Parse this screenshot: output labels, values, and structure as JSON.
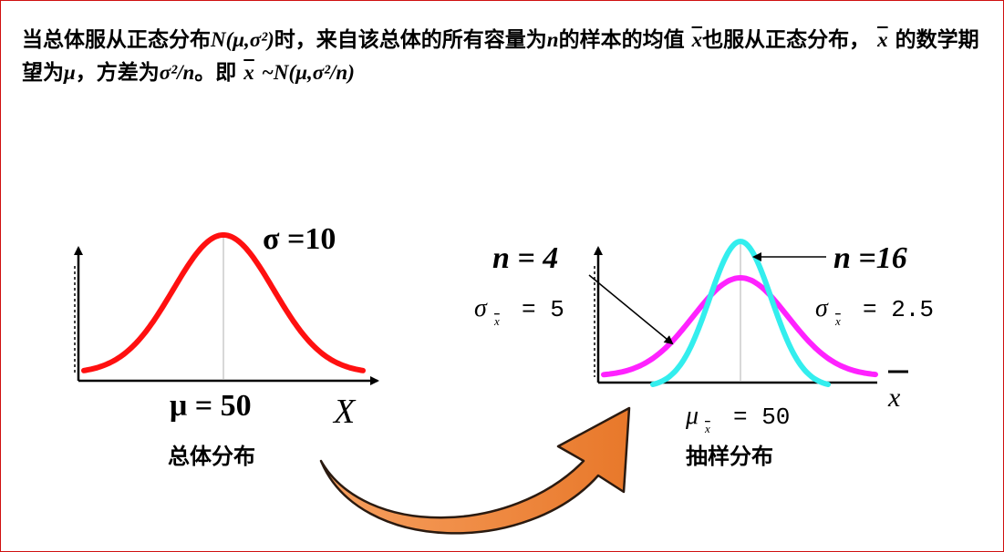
{
  "intro": {
    "p1": "当总体服从正态分布",
    "m1": "N(μ,σ²)",
    "p2": "时，来自该总体的所有容量为",
    "m2": "n",
    "p3": "的样本的均值",
    "m3": "x",
    "p4": "也服从正态分布，",
    "m4": "x",
    "p5": "的数学期望为",
    "m5": "μ",
    "p6": "，方差为",
    "m6": "σ²/n",
    "p7": "。即",
    "m7": "x",
    "m8": "~N(μ,σ²/n)"
  },
  "left": {
    "sigma_label": "σ =10",
    "mu_label": "μ = 50",
    "axis_label": "X",
    "caption": "总体分布"
  },
  "right": {
    "n4_label": "n = 4",
    "n16_label": "n =16",
    "sigma4_sym": "σ",
    "sigma4_sub": "x",
    "sigma4_val": "= 5",
    "sigma16_sym": "σ",
    "sigma16_sub": "x",
    "sigma16_val": "= 2.5",
    "mu_sym": "μ",
    "mu_sub": "x",
    "mu_val": "= 50",
    "axis_label": "x",
    "caption": "抽样分布"
  },
  "colors": {
    "population_curve": "#ff1010",
    "n4_curve": "#ff22ff",
    "n16_curve": "#33eeee",
    "arrow": "#f08030",
    "frame": "#d01010"
  }
}
